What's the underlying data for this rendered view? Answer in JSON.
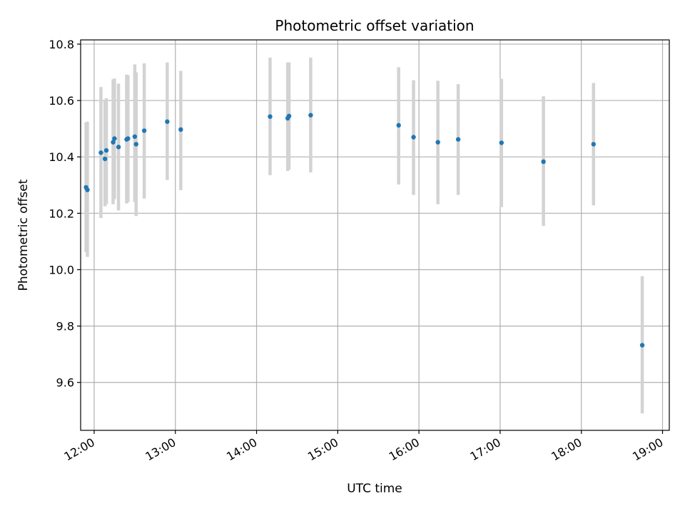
{
  "chart_data": {
    "type": "scatter",
    "title": "Photometric offset variation",
    "xlabel": "UTC time",
    "ylabel": "Photometric offset",
    "xlim": [
      "11:50",
      "19:05"
    ],
    "ylim": [
      9.43,
      10.815
    ],
    "x_ticks": [
      "12:00",
      "13:00",
      "14:00",
      "15:00",
      "16:00",
      "17:00",
      "18:00",
      "19:00"
    ],
    "y_ticks": [
      "9.6",
      "9.8",
      "10.0",
      "10.2",
      "10.4",
      "10.6",
      "10.8"
    ],
    "grid": true,
    "colors": {
      "points": "#1f77b4",
      "error_bars": "#d3d3d3",
      "grid": "#b0b0b0"
    },
    "points": [
      {
        "time": "11:54",
        "value": 10.292,
        "lower": 10.062,
        "upper": 10.522
      },
      {
        "time": "11:55",
        "value": 10.283,
        "lower": 10.045,
        "upper": 10.525
      },
      {
        "time": "12:05",
        "value": 10.415,
        "lower": 10.183,
        "upper": 10.648
      },
      {
        "time": "12:08",
        "value": 10.393,
        "lower": 10.225,
        "upper": 10.6
      },
      {
        "time": "12:09",
        "value": 10.423,
        "lower": 10.232,
        "upper": 10.608
      },
      {
        "time": "12:14",
        "value": 10.452,
        "lower": 10.232,
        "upper": 10.675
      },
      {
        "time": "12:15",
        "value": 10.465,
        "lower": 10.25,
        "upper": 10.678
      },
      {
        "time": "12:18",
        "value": 10.435,
        "lower": 10.21,
        "upper": 10.66
      },
      {
        "time": "12:24",
        "value": 10.462,
        "lower": 10.235,
        "upper": 10.692
      },
      {
        "time": "12:25",
        "value": 10.465,
        "lower": 10.24,
        "upper": 10.69
      },
      {
        "time": "12:30",
        "value": 10.472,
        "lower": 10.24,
        "upper": 10.728
      },
      {
        "time": "12:31",
        "value": 10.445,
        "lower": 10.19,
        "upper": 10.7
      },
      {
        "time": "12:37",
        "value": 10.493,
        "lower": 10.252,
        "upper": 10.732
      },
      {
        "time": "12:54",
        "value": 10.525,
        "lower": 10.318,
        "upper": 10.735
      },
      {
        "time": "13:04",
        "value": 10.497,
        "lower": 10.282,
        "upper": 10.705
      },
      {
        "time": "14:10",
        "value": 10.543,
        "lower": 10.335,
        "upper": 10.752
      },
      {
        "time": "14:23",
        "value": 10.537,
        "lower": 10.35,
        "upper": 10.735
      },
      {
        "time": "14:24",
        "value": 10.545,
        "lower": 10.355,
        "upper": 10.735
      },
      {
        "time": "14:40",
        "value": 10.548,
        "lower": 10.345,
        "upper": 10.752
      },
      {
        "time": "15:45",
        "value": 10.512,
        "lower": 10.302,
        "upper": 10.718
      },
      {
        "time": "15:56",
        "value": 10.47,
        "lower": 10.265,
        "upper": 10.672
      },
      {
        "time": "16:14",
        "value": 10.452,
        "lower": 10.232,
        "upper": 10.67
      },
      {
        "time": "16:29",
        "value": 10.462,
        "lower": 10.265,
        "upper": 10.658
      },
      {
        "time": "17:01",
        "value": 10.45,
        "lower": 10.222,
        "upper": 10.677
      },
      {
        "time": "17:32",
        "value": 10.383,
        "lower": 10.155,
        "upper": 10.615
      },
      {
        "time": "18:09",
        "value": 10.445,
        "lower": 10.228,
        "upper": 10.662
      },
      {
        "time": "18:45",
        "value": 9.732,
        "lower": 9.49,
        "upper": 9.977
      }
    ]
  }
}
